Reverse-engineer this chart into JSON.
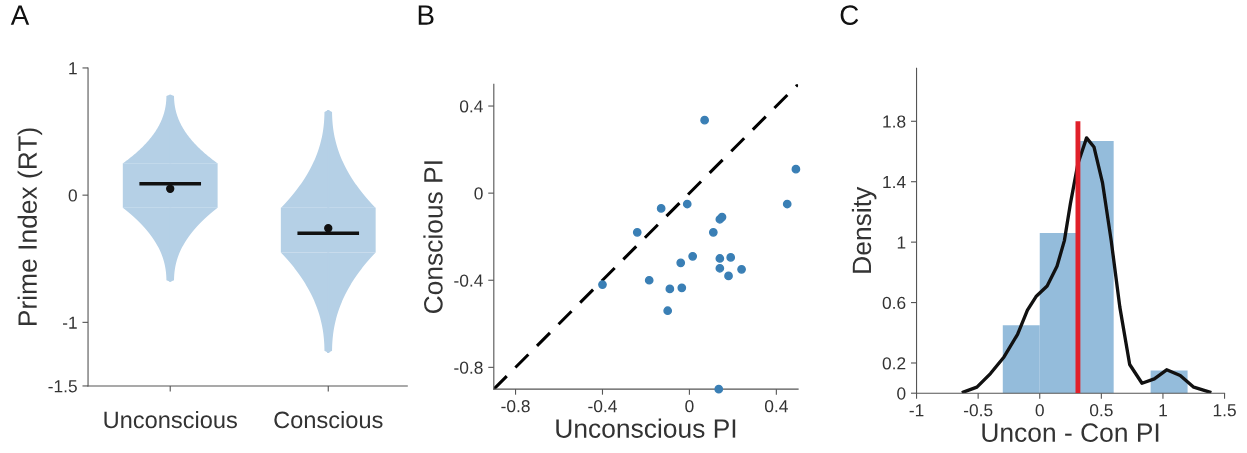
{
  "chart_data": [
    {
      "type": "box",
      "title": "A",
      "ylabel": "Prime Index (RT)",
      "categories": [
        "Unconscious",
        "Conscious"
      ],
      "color": "#b5d0e6",
      "boxes": [
        {
          "low": -0.68,
          "q1": -0.1,
          "median": 0.09,
          "q3": 0.25,
          "high": 0.79,
          "mean": 0.05
        },
        {
          "low": -1.24,
          "q1": -0.45,
          "median": -0.3,
          "q3": -0.1,
          "high": 0.67,
          "mean": -0.26
        }
      ],
      "ylim": [
        -1.5,
        1
      ],
      "yticks": [
        -1.5,
        -1,
        0,
        1
      ],
      "grid": false
    },
    {
      "type": "scatter",
      "title": "B",
      "xlabel": "Unconscious PI",
      "ylabel": "Conscious PI",
      "xlim": [
        -0.9,
        0.5
      ],
      "ylim": [
        -0.9,
        0.5
      ],
      "xticks": [
        -0.8,
        -0.4,
        0,
        0.4
      ],
      "yticks": [
        -0.8,
        -0.4,
        0,
        0.4
      ],
      "grid": false,
      "series": [
        {
          "type": "scatter",
          "marker": "circle",
          "color": "#3a7fb5",
          "x": [
            0.07,
            0.49,
            0.45,
            -0.13,
            -0.01,
            0.15,
            0.14,
            -0.24,
            0.11,
            0.015,
            -0.04,
            0.14,
            0.19,
            0.14,
            0.24,
            0.18,
            -0.185,
            -0.4,
            -0.09,
            -0.035,
            -0.1,
            0.135
          ],
          "values": [
            0.335,
            0.11,
            -0.05,
            -0.07,
            -0.05,
            -0.11,
            -0.12,
            -0.18,
            -0.18,
            -0.29,
            -0.32,
            -0.3,
            -0.295,
            -0.345,
            -0.35,
            -0.38,
            -0.4,
            -0.42,
            -0.44,
            -0.435,
            -0.54,
            -0.9
          ]
        },
        {
          "type": "line",
          "color": "#000000",
          "line_style": "dashed",
          "x": [
            -0.9,
            0.5
          ],
          "values": [
            -0.9,
            0.5
          ]
        }
      ]
    },
    {
      "type": "histogram",
      "title": "C",
      "xlabel": "Uncon - Con PI",
      "ylabel": "Density",
      "color": "#94bcdb",
      "bins": [
        -0.3,
        0,
        0.3,
        0.6,
        0.9,
        1.2
      ],
      "values": [
        0.45,
        1.06,
        1.67,
        0,
        0.15
      ],
      "xlim": [
        -1,
        1.5
      ],
      "ylim": [
        0,
        2.15
      ],
      "xticks": [
        -1,
        -0.5,
        0,
        0.5,
        1,
        1.5
      ],
      "yticks": [
        0,
        0.2,
        0.6,
        1,
        1.4,
        1.8
      ],
      "grid": false,
      "series": [
        {
          "type": "line",
          "color": "#111111",
          "x": [
            -0.62,
            -0.51,
            -0.4,
            -0.29,
            -0.18,
            -0.1,
            -0.03,
            0.06,
            0.14,
            0.2,
            0.25,
            0.31,
            0.38,
            0.44,
            0.51,
            0.58,
            0.65,
            0.73,
            0.83,
            0.93,
            1.03,
            1.14,
            1.25,
            1.38
          ],
          "values": [
            0.007,
            0.04,
            0.13,
            0.24,
            0.39,
            0.55,
            0.64,
            0.71,
            0.84,
            1.01,
            1.26,
            1.52,
            1.69,
            1.63,
            1.39,
            1.01,
            0.57,
            0.19,
            0.066,
            0.095,
            0.155,
            0.117,
            0.04,
            0.007
          ]
        }
      ],
      "ref_lines": [
        {
          "axis": "x",
          "value": 0.31,
          "color": "#e0202a"
        }
      ]
    }
  ]
}
